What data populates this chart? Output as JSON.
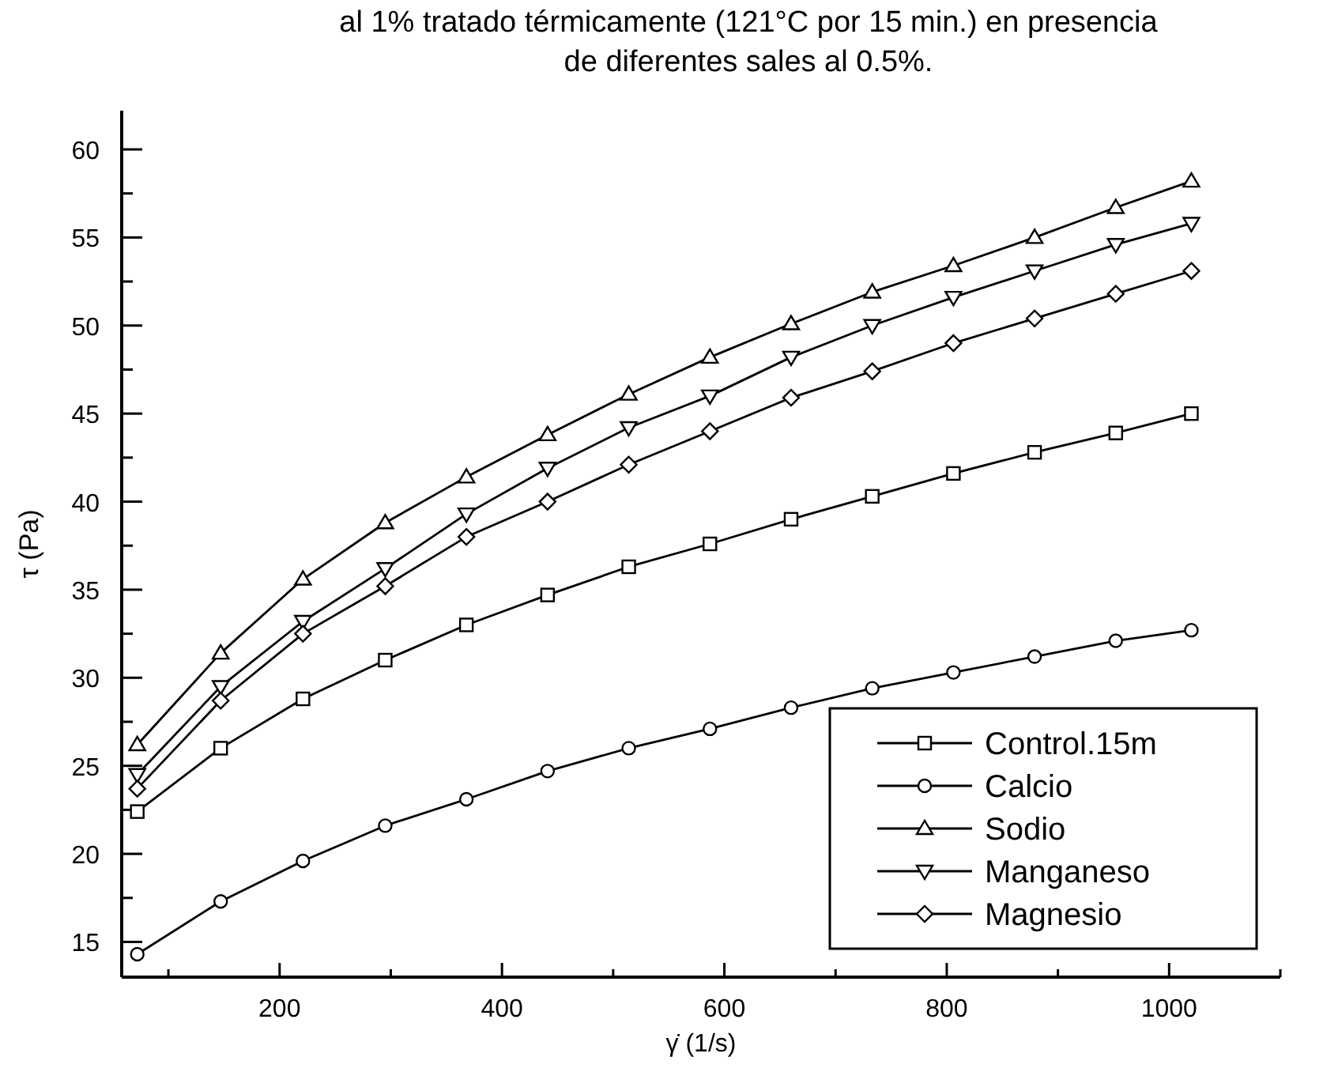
{
  "chart_data": {
    "type": "line",
    "title": [
      "al 1% tratado térmicamente (121°C por 15 min.) en presencia",
      "de diferentes sales al 0.5%."
    ],
    "xlabel": "γ̇ (1/s)",
    "ylabel": "τ (Pa)",
    "x": [
      72,
      147,
      221,
      295,
      368,
      441,
      514,
      587,
      660,
      733,
      806,
      879,
      952,
      1020
    ],
    "xlim": [
      58,
      1100
    ],
    "ylim": [
      13,
      62.2
    ],
    "xticks": [
      {
        "value": 100,
        "label": null
      },
      200,
      {
        "value": 300,
        "label": null
      },
      400,
      {
        "value": 500,
        "label": null
      },
      600,
      {
        "value": 700,
        "label": null
      },
      800,
      {
        "value": 900,
        "label": null
      },
      1000,
      {
        "value": 1100,
        "label": null
      }
    ],
    "yticks": [
      15,
      {
        "value": 17.5,
        "label": null
      },
      20,
      {
        "value": 22.5,
        "label": null
      },
      25,
      {
        "value": 27.5,
        "label": null
      },
      30,
      {
        "value": 32.5,
        "label": null
      },
      35,
      {
        "value": 37.5,
        "label": null
      },
      40,
      {
        "value": 42.5,
        "label": null
      },
      45,
      {
        "value": 47.5,
        "label": null
      },
      50,
      {
        "value": 52.5,
        "label": null
      },
      55,
      {
        "value": 57.5,
        "label": null
      },
      60
    ],
    "legend": "bottom right",
    "grid": false,
    "series": [
      {
        "name": "Control.15m",
        "color": "#000000",
        "marker": "square",
        "values": [
          22.4,
          26.0,
          28.8,
          31.0,
          33.0,
          34.7,
          36.3,
          37.6,
          39.0,
          40.3,
          41.6,
          42.8,
          43.9,
          45.0
        ]
      },
      {
        "name": "Calcio",
        "color": "#000000",
        "marker": "circle",
        "values": [
          14.3,
          17.3,
          19.6,
          21.6,
          23.1,
          24.7,
          26.0,
          27.1,
          28.3,
          29.4,
          30.3,
          31.2,
          32.1,
          32.7
        ]
      },
      {
        "name": "Sodio",
        "color": "#000000",
        "marker": "triangle",
        "values": [
          26.2,
          31.4,
          35.6,
          38.8,
          41.4,
          43.8,
          46.1,
          48.2,
          50.1,
          51.9,
          53.4,
          55.0,
          56.7,
          58.2
        ]
      },
      {
        "name": "Manganeso",
        "color": "#000000",
        "marker": "triangle-down",
        "values": [
          24.5,
          29.5,
          33.2,
          36.2,
          39.3,
          41.9,
          44.2,
          46.0,
          48.2,
          50.0,
          51.6,
          53.1,
          54.6,
          55.8
        ]
      },
      {
        "name": "Magnesio",
        "color": "#000000",
        "marker": "diamond",
        "values": [
          23.7,
          28.7,
          32.5,
          35.2,
          38.0,
          40.0,
          42.1,
          44.0,
          45.9,
          47.4,
          49.0,
          50.4,
          51.8,
          53.1
        ]
      }
    ]
  }
}
